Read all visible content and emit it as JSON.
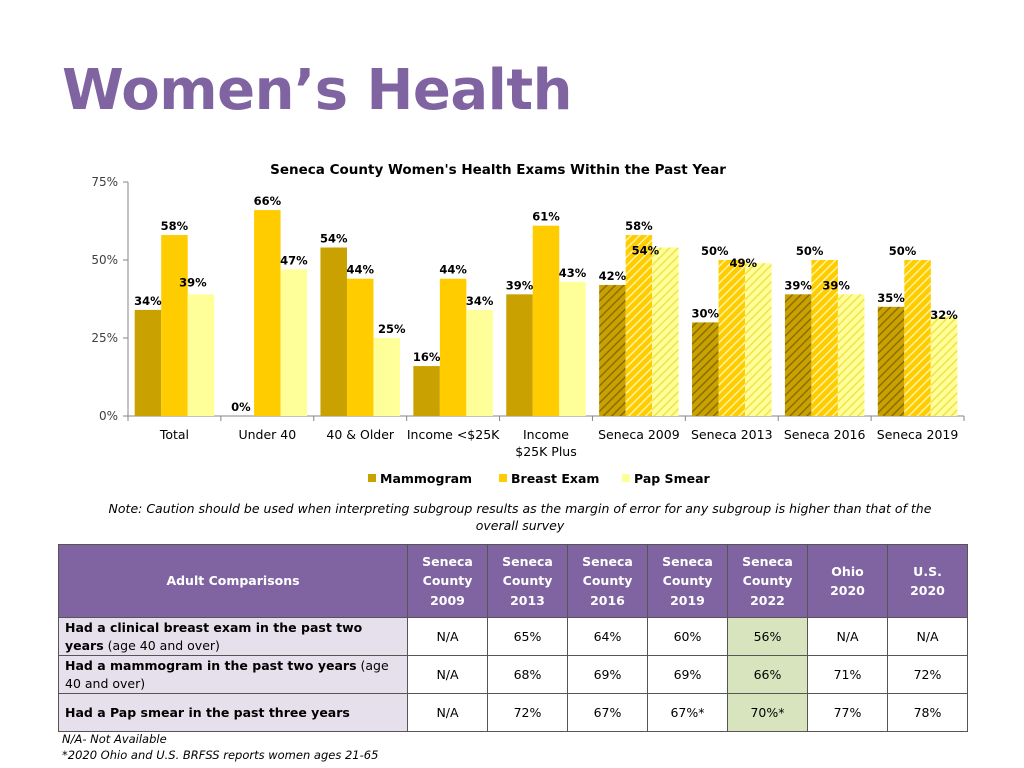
{
  "page": {
    "title": "Women’s Health",
    "note": "Note: Caution should be used when interpreting subgroup results as the margin of error for any subgroup is higher than that of the overall survey",
    "footnote1": "N/A- Not Available",
    "footnote2": "*2020 Ohio and U.S. BRFSS reports women ages 21-65"
  },
  "colors": {
    "title": "#8064A2",
    "mammogram": "#C9A100",
    "breast_exam": "#FFCC00",
    "pap_smear": "#FFFF99",
    "table_header": "#8064A2",
    "row_label_bg": "#E6E0EC",
    "highlight": "#D7E4BD"
  },
  "chart_data": {
    "type": "bar",
    "title": "Seneca County Women's Health Exams Within the Past Year",
    "categories": [
      "Total",
      "Under 40",
      "40 & Older",
      "Income <$25K",
      "Income $25K Plus",
      "Seneca 2009",
      "Seneca 2013",
      "Seneca 2016",
      "Seneca 2019"
    ],
    "category_lines": [
      [
        "Total"
      ],
      [
        "Under 40"
      ],
      [
        "40 & Older"
      ],
      [
        "Income <$25K"
      ],
      [
        "Income",
        "$25K Plus"
      ],
      [
        "Seneca 2009"
      ],
      [
        "Seneca 2013"
      ],
      [
        "Seneca 2016"
      ],
      [
        "Seneca 2019"
      ]
    ],
    "series": [
      {
        "name": "Mammogram",
        "values": [
          34,
          0,
          54,
          16,
          39,
          42,
          30,
          39,
          35
        ]
      },
      {
        "name": "Breast Exam",
        "values": [
          58,
          66,
          44,
          44,
          61,
          58,
          50,
          50,
          50
        ]
      },
      {
        "name": "Pap Smear",
        "values": [
          39,
          47,
          25,
          34,
          43,
          54,
          49,
          39,
          32
        ]
      }
    ],
    "hatched_categories": [
      "Seneca 2009",
      "Seneca 2013",
      "Seneca 2016",
      "Seneca 2019"
    ],
    "ylim": [
      0,
      75
    ],
    "yticks": [
      0,
      25,
      50,
      75
    ],
    "ytick_labels": [
      "0%",
      "25%",
      "50%",
      "75%"
    ],
    "value_suffix": "%",
    "legend_position": "bottom",
    "grid": false
  },
  "table": {
    "corner_header": "Adult Comparisons",
    "columns": [
      [
        "Seneca",
        "County",
        "2009"
      ],
      [
        "Seneca",
        "County",
        "2013"
      ],
      [
        "Seneca",
        "County",
        "2016"
      ],
      [
        "Seneca",
        "County",
        "2019"
      ],
      [
        "Seneca",
        "County",
        "2022"
      ],
      [
        "Ohio",
        "2020"
      ],
      [
        "U.S.",
        "2020"
      ]
    ],
    "rows": [
      {
        "label_bold": "Had a clinical breast exam in the past two years",
        "label_rest": " (age 40 and over)",
        "values": [
          "N/A",
          "65%",
          "64%",
          "60%",
          "56%",
          "N/A",
          "N/A"
        ]
      },
      {
        "label_bold": "Had a mammogram in the past two years",
        "label_rest": " (age 40 and over)",
        "values": [
          "N/A",
          "68%",
          "69%",
          "69%",
          "66%",
          "71%",
          "72%"
        ]
      },
      {
        "label_bold": "Had a Pap smear in the past three years",
        "label_rest": "",
        "values": [
          "N/A",
          "72%",
          "67%",
          "67%*",
          "70%*",
          "77%",
          "78%"
        ]
      }
    ],
    "highlight_column": 4
  }
}
